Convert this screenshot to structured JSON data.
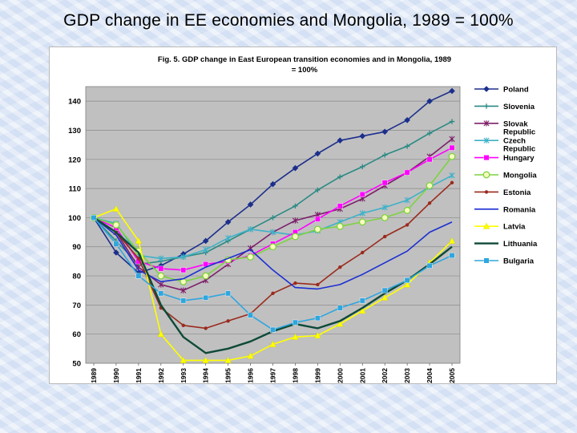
{
  "slide_title": "GDP change in EE economies and Mongolia, 1989 = 100%",
  "chart_data": {
    "type": "line",
    "title": "Fig. 5. GDP change in East European transition economies and in Mongolia, 1989 = 100%",
    "xlabel": "",
    "ylabel": "",
    "ylim": [
      50,
      145
    ],
    "yticks": [
      50,
      60,
      70,
      80,
      90,
      100,
      110,
      120,
      130,
      140
    ],
    "x": [
      "1989",
      "1990",
      "1991",
      "1992",
      "1993",
      "1994",
      "1995",
      "1996",
      "1997",
      "1998",
      "1999",
      "2000",
      "2001",
      "2002",
      "2003",
      "2004",
      "2005"
    ],
    "grid": true,
    "legend": "right",
    "series": [
      {
        "name": "Poland",
        "color": "#1c2f8c",
        "marker": "diamond",
        "values": [
          100,
          88,
          81,
          83.5,
          87.5,
          92,
          98.5,
          104.5,
          111.5,
          117,
          122,
          126.5,
          128,
          129.5,
          133.5,
          140,
          143.5
        ]
      },
      {
        "name": "Slovenia",
        "color": "#2a8a84",
        "marker": "plus",
        "values": [
          100,
          92,
          84,
          85,
          86.5,
          88,
          92,
          96,
          100,
          104,
          109.5,
          114,
          117.5,
          121.5,
          124.5,
          129,
          133
        ]
      },
      {
        "name": "Slovak Republic",
        "color": "#7d1e6a",
        "marker": "star",
        "values": [
          100,
          95,
          83,
          77,
          75,
          78.5,
          84,
          89.5,
          95,
          99,
          101,
          103,
          106.5,
          111,
          115.5,
          121,
          127
        ]
      },
      {
        "name": "Czech Republic",
        "color": "#3eb1c8",
        "marker": "star",
        "values": [
          100,
          98,
          87,
          86,
          86.5,
          89,
          93,
          96,
          95,
          94,
          95.5,
          98.5,
          101.5,
          103.5,
          106,
          110.5,
          114.5
        ]
      },
      {
        "name": "Hungary",
        "color": "#ff00ff",
        "marker": "square",
        "values": [
          100,
          96.5,
          85,
          82.5,
          82,
          84,
          85,
          87,
          91,
          95,
          99.5,
          104,
          108,
          112,
          115.5,
          120,
          124
        ]
      },
      {
        "name": "Mongolia",
        "color": "#7dd33f",
        "marker": "circle",
        "values": [
          100,
          97.5,
          88.5,
          80,
          78,
          80,
          85.5,
          86.5,
          90,
          93.5,
          96,
          97,
          98.5,
          100,
          102.5,
          111,
          121
        ]
      },
      {
        "name": "Estonia",
        "color": "#9b2a1c",
        "marker": "dot",
        "values": [
          100,
          95,
          86,
          69,
          63,
          62,
          64.5,
          67,
          74,
          77.5,
          77,
          83,
          88,
          93.5,
          97.5,
          105,
          112
        ]
      },
      {
        "name": "Romania",
        "color": "#1b2fd2",
        "marker": "none",
        "values": [
          100,
          94,
          82,
          78,
          79,
          83,
          86,
          89,
          82,
          76,
          75.5,
          77,
          80.5,
          84.5,
          88.5,
          95,
          98.5
        ]
      },
      {
        "name": "Latvia",
        "color": "#ffff00",
        "marker": "triangle",
        "values": [
          100,
          103,
          92,
          60,
          51,
          51,
          51,
          52.5,
          56.5,
          59,
          59.5,
          63.5,
          68,
          72.5,
          77,
          84.5,
          92
        ]
      },
      {
        "name": "Lithuania",
        "color": "#0e4a38",
        "marker": "none",
        "values": [
          100,
          95,
          88,
          70,
          59,
          53.5,
          55,
          57.5,
          61,
          63.5,
          62,
          64.5,
          69,
          74,
          78.5,
          84,
          90
        ]
      },
      {
        "name": "Bulgaria",
        "color": "#2fa6de",
        "marker": "square",
        "values": [
          100,
          91,
          80,
          74,
          71.5,
          72.5,
          74,
          66.5,
          61.5,
          64,
          65.5,
          69,
          71.5,
          75,
          78.5,
          83.5,
          87
        ]
      }
    ]
  }
}
